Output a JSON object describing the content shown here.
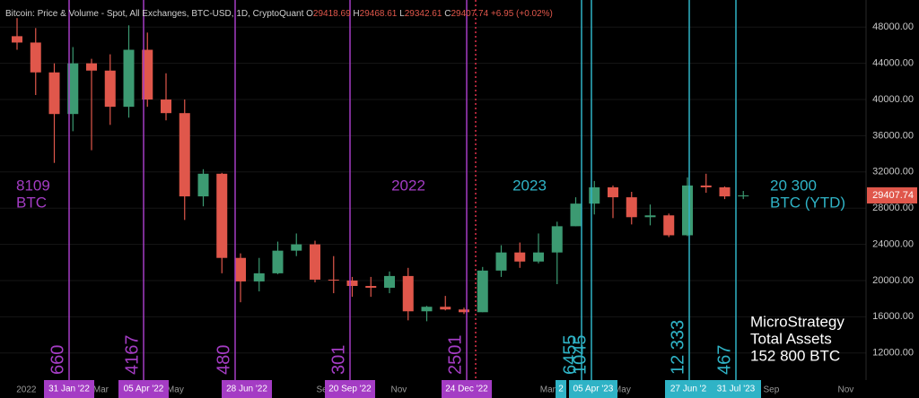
{
  "chart_data": {
    "type": "candlestick",
    "title": "Bitcoin: Price & Volume - Spot, All Exchanges, BTC-USD, 1D, CryptoQuant",
    "header_values": [
      {
        "label": "O",
        "value": 29418.69
      },
      {
        "label": "H",
        "value": 29468.61
      },
      {
        "label": "L",
        "value": 29342.61
      },
      {
        "label": "C",
        "value": 29407.74
      }
    ],
    "change": "+6.95 (+0.02%)",
    "up_color": "#3c9a72",
    "down_color": "#e0574b",
    "categories": [
      null,
      "2022",
      null,
      null,
      null,
      "Mar",
      null,
      null,
      null,
      "May",
      null,
      null,
      null,
      null,
      null,
      null,
      null,
      "Sep",
      null,
      null,
      null,
      "Nov",
      null,
      null,
      null,
      null,
      null,
      null,
      null,
      "Mar",
      null,
      null,
      null,
      "May",
      null,
      null,
      null,
      null,
      null,
      null,
      null,
      "Sep",
      null,
      null,
      null,
      "Nov",
      null
    ],
    "open": [
      47000,
      46300,
      43000,
      38400,
      44000,
      43200,
      39200,
      45500,
      40000,
      38500,
      29300,
      31800,
      22500,
      19900,
      20800,
      23300,
      24000,
      20100,
      20000,
      19400,
      19200,
      20500,
      16600,
      17100,
      16800,
      16500,
      21100,
      23100,
      22100,
      23100,
      26000,
      28500,
      30300,
      29200,
      27000,
      27200,
      25000,
      30500,
      30300,
      29300,
      null,
      null,
      null,
      null,
      null,
      null,
      null
    ],
    "high": [
      49000,
      47900,
      44000,
      45800,
      44500,
      45000,
      48200,
      47400,
      42900,
      40000,
      32300,
      31900,
      23000,
      22500,
      24300,
      25200,
      24400,
      22700,
      20400,
      20400,
      21000,
      21400,
      17200,
      18300,
      17000,
      21500,
      23900,
      24200,
      25200,
      26500,
      29200,
      31000,
      30500,
      29800,
      28400,
      27400,
      31400,
      31800,
      30400,
      29900,
      null,
      null,
      null,
      null,
      null,
      null,
      null
    ],
    "low": [
      45500,
      40500,
      33000,
      36500,
      34400,
      37200,
      38000,
      39200,
      37700,
      26700,
      28200,
      20800,
      17600,
      18800,
      20700,
      22700,
      19800,
      18600,
      18200,
      18200,
      18600,
      15600,
      15500,
      16700,
      16300,
      16500,
      20400,
      21400,
      21900,
      19600,
      26000,
      27300,
      26900,
      26200,
      26100,
      24800,
      24900,
      29700,
      29000,
      29000,
      null,
      null,
      null,
      null,
      null,
      null,
      null
    ],
    "close": [
      46300,
      43000,
      38400,
      44000,
      43200,
      39200,
      45500,
      40000,
      38500,
      29300,
      31800,
      22500,
      19900,
      20800,
      23300,
      24000,
      20100,
      20000,
      19400,
      19200,
      20500,
      16600,
      17100,
      16800,
      16500,
      21100,
      23100,
      22100,
      23100,
      26000,
      28500,
      30300,
      29200,
      27000,
      27200,
      25000,
      30500,
      30300,
      29300,
      29407.74,
      null,
      null,
      null,
      null,
      null,
      null,
      null
    ],
    "ylim": [
      9000,
      51000
    ],
    "yticks": [
      {
        "value": 12000,
        "label": "12000.00"
      },
      {
        "value": 16000,
        "label": "16000.00"
      },
      {
        "value": 20000,
        "label": "20000.00"
      },
      {
        "value": 24000,
        "label": "24000.00"
      },
      {
        "value": 28000,
        "label": "28000.00"
      },
      {
        "value": 32000,
        "label": "32000.00"
      },
      {
        "value": 36000,
        "label": "36000.00"
      },
      {
        "value": 40000,
        "label": "40000.00"
      },
      {
        "value": 44000,
        "label": "44000.00"
      },
      {
        "value": 48000,
        "label": "48000.00"
      }
    ],
    "events": [
      {
        "date": "31 Jan '22",
        "amount": "660",
        "color": "#a43cc4"
      },
      {
        "date": "05 Apr '22",
        "amount": "4167",
        "color": "#a43cc4"
      },
      {
        "date": "28 Jun '22",
        "amount": "480",
        "color": "#a43cc4"
      },
      {
        "date": "20 Sep '22",
        "amount": "301",
        "color": "#a43cc4"
      },
      {
        "date": "24 Dec '22",
        "amount": "2501",
        "color": "#a43cc4"
      },
      {
        "date": "2",
        "amount": "6455",
        "color": "#2fb3c6"
      },
      {
        "date": "05 Apr '23",
        "amount": "1045",
        "color": "#2fb3c6"
      },
      {
        "date": "27 Jun '2",
        "amount": "12 333",
        "color": "#2fb3c6"
      },
      {
        "date": "31 Jul '23",
        "amount": "467",
        "color": "#2fb3c6"
      }
    ],
    "annotations": [
      {
        "text": "8109",
        "color": "#a43cc4"
      },
      {
        "text": "BTC",
        "color": "#a43cc4"
      },
      {
        "text": "2022",
        "color": "#a43cc4"
      },
      {
        "text": "2023",
        "color": "#2fb3c6"
      },
      {
        "text": "20 300",
        "color": "#2fb3c6"
      },
      {
        "text": "BTC (YTD)",
        "color": "#2fb3c6"
      },
      {
        "text": "MicroStrategy",
        "color": "#ffffff"
      },
      {
        "text": "Total Assets",
        "color": "#ffffff"
      },
      {
        "text": "152 800 BTC",
        "color": "#ffffff"
      }
    ]
  }
}
